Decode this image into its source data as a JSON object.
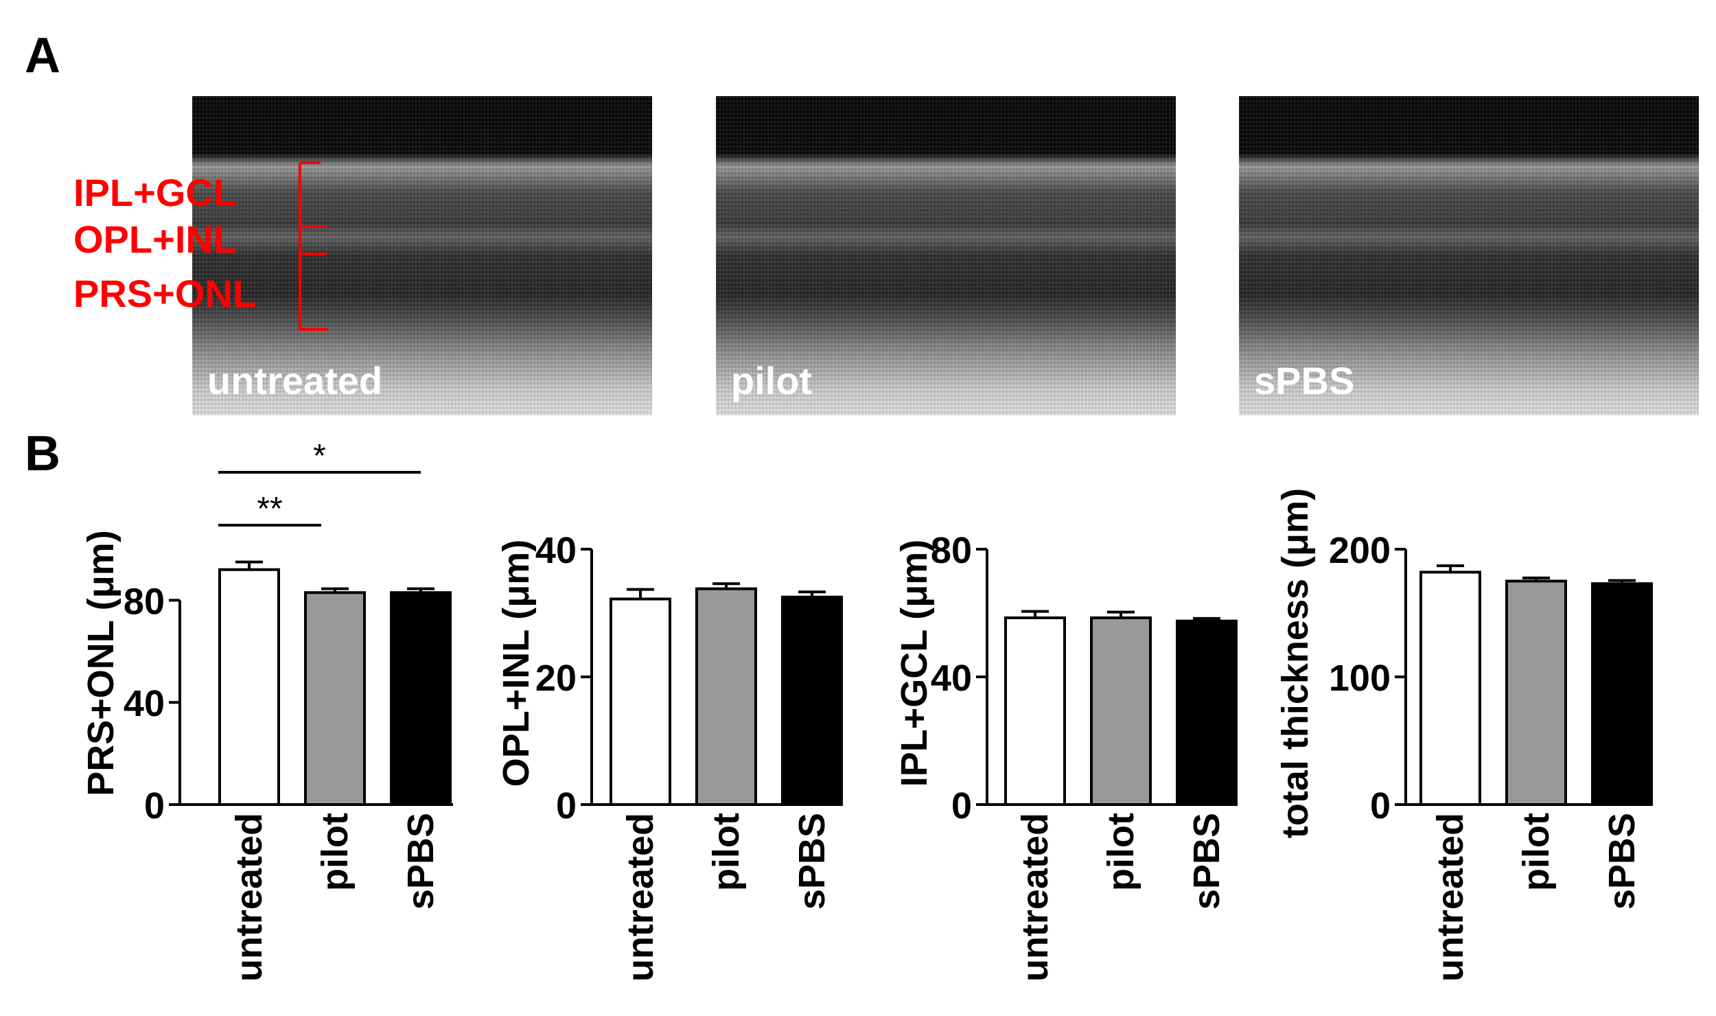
{
  "panel_labels": {
    "a": "A",
    "b": "B"
  },
  "oct_images": [
    {
      "label": "untreated"
    },
    {
      "label": "pilot"
    },
    {
      "label": "sPBS"
    }
  ],
  "layer_labels": [
    "IPL+GCL",
    "OPL+INL",
    "PRS+ONL"
  ],
  "colors": {
    "untreated": "#ffffff",
    "pilot": "#999999",
    "sPBS": "#000000",
    "annotation": "#ff0000"
  },
  "chart_data": [
    {
      "type": "bar",
      "categories": [
        "untreated",
        "pilot",
        "sPBS"
      ],
      "values": [
        92,
        83,
        83
      ],
      "errors": [
        3,
        1.5,
        1.5
      ],
      "ylabel": "PRS+ONL (μm)",
      "ylim": [
        0,
        100
      ],
      "yticks": [
        0,
        40,
        80
      ],
      "significance": [
        {
          "from": 0,
          "to": 1,
          "label": "**"
        },
        {
          "from": 0,
          "to": 2,
          "label": "*"
        }
      ]
    },
    {
      "type": "bar",
      "categories": [
        "untreated",
        "pilot",
        "sPBS"
      ],
      "values": [
        32.2,
        33.8,
        32.5
      ],
      "errors": [
        1.5,
        0.8,
        0.8
      ],
      "ylabel": "OPL+INL (μm)",
      "ylim": [
        0,
        40
      ],
      "yticks": [
        0,
        20,
        40
      ]
    },
    {
      "type": "bar",
      "categories": [
        "untreated",
        "pilot",
        "sPBS"
      ],
      "values": [
        58.5,
        58.5,
        57.5
      ],
      "errors": [
        2,
        1.8,
        0.8
      ],
      "ylabel": "IPL+GCL (μm)",
      "ylim": [
        0,
        80
      ],
      "yticks": [
        0,
        40,
        80
      ]
    },
    {
      "type": "bar",
      "categories": [
        "untreated",
        "pilot",
        "sPBS"
      ],
      "values": [
        182,
        175,
        173
      ],
      "errors": [
        5,
        2.5,
        2.5
      ],
      "ylabel": "total thickness (μm)",
      "ylim": [
        0,
        200
      ],
      "yticks": [
        0,
        100,
        200
      ]
    }
  ]
}
